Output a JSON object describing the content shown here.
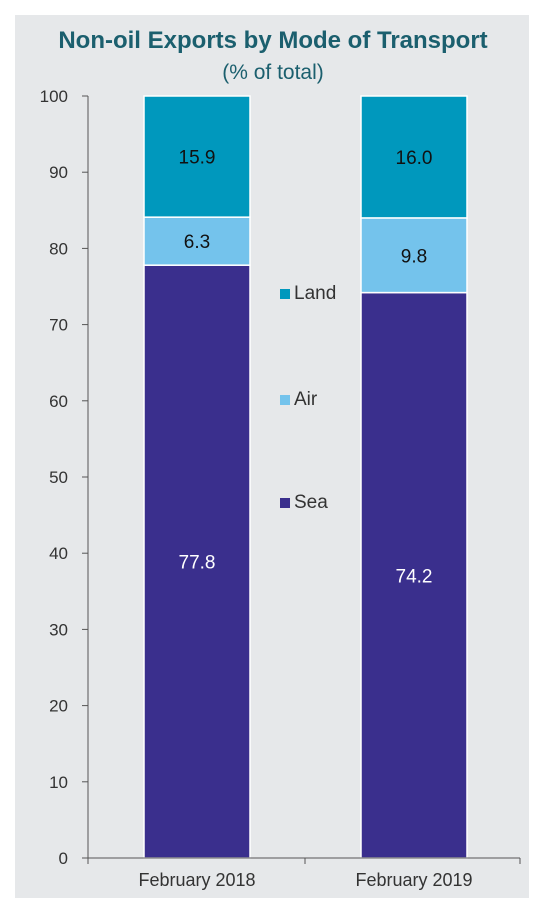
{
  "chart_data": {
    "type": "bar",
    "stacked": true,
    "title": "Non-oil Exports by Mode of Transport",
    "subtitle": "(% of total)",
    "categories": [
      "February 2018",
      "February 2019"
    ],
    "series": [
      {
        "name": "Sea",
        "values": [
          77.8,
          74.2
        ],
        "color": "#3a2f8d",
        "label_color": "#ffffff"
      },
      {
        "name": "Air",
        "values": [
          6.3,
          9.8
        ],
        "color": "#74c3ec",
        "label_color": "#111111"
      },
      {
        "name": "Land",
        "values": [
          15.9,
          16.0
        ],
        "color": "#0098bd",
        "label_color": "#111111"
      }
    ],
    "ylim": [
      0,
      100
    ],
    "yticks": [
      "0",
      "10",
      "20",
      "30",
      "40",
      "50",
      "60",
      "70",
      "80",
      "90",
      "100"
    ],
    "legend_order": [
      "Land",
      "Air",
      "Sea"
    ],
    "legend_position": "center",
    "grid": false
  }
}
